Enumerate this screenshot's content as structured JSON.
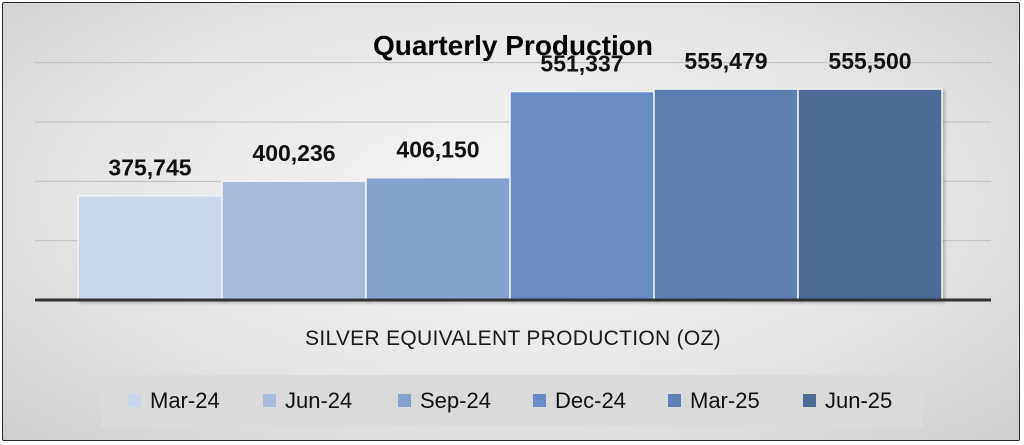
{
  "chart_data": {
    "type": "bar",
    "title": "Quarterly Production",
    "xlabel": "SILVER EQUIVALENT PRODUCTION (OZ)",
    "ylabel": "",
    "ylim": [
      200000,
      650000
    ],
    "grid": true,
    "legend_position": "bottom",
    "categories": [
      "SILVER EQUIVALENT PRODUCTION (OZ)"
    ],
    "series": [
      {
        "name": "Mar-24",
        "values": [
          375745
        ],
        "label": "375,745",
        "color": "#c9d5e8"
      },
      {
        "name": "Jun-24",
        "values": [
          400236
        ],
        "label": "400,236",
        "color": "#a8bbdb"
      },
      {
        "name": "Sep-24",
        "values": [
          406150
        ],
        "label": "406,150",
        "color": "#87a1cf"
      },
      {
        "name": "Dec-24",
        "values": [
          551337
        ],
        "label": "551,337",
        "color": "#6a8cc4"
      },
      {
        "name": "Mar-25",
        "values": [
          555479
        ],
        "label": "555,479",
        "color": "#5e7fb1"
      },
      {
        "name": "Jun-25",
        "values": [
          555500
        ],
        "label": "555,500",
        "color": "#4e6a96"
      }
    ]
  }
}
